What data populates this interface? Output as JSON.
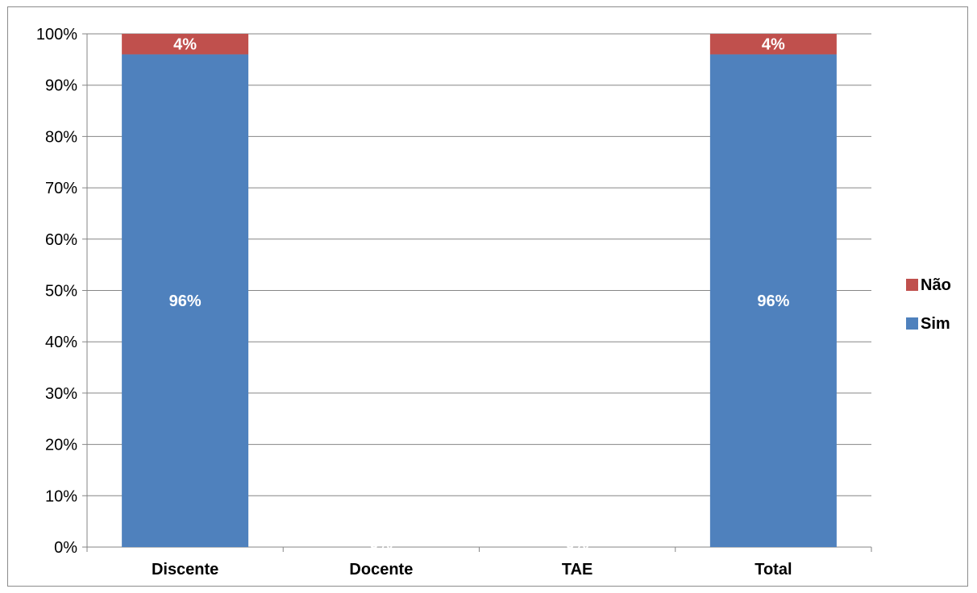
{
  "chart_data": {
    "type": "bar",
    "stacked": true,
    "title": "",
    "xlabel": "",
    "ylabel": "",
    "ylim": [
      0,
      1
    ],
    "y_ticks": [
      "0%",
      "10%",
      "20%",
      "30%",
      "40%",
      "50%",
      "60%",
      "70%",
      "80%",
      "90%",
      "100%"
    ],
    "categories": [
      "Discente",
      "Docente",
      "TAE",
      "Total"
    ],
    "series": [
      {
        "name": "Sim",
        "color": "#4f81bd",
        "values": [
          0.96,
          0,
          0,
          0.96
        ],
        "labels": [
          "96%",
          "0%",
          "0%",
          "96%"
        ]
      },
      {
        "name": "Não",
        "color": "#c0504d",
        "values": [
          0.04,
          0,
          0,
          0.04
        ],
        "labels": [
          "4%",
          "",
          "",
          "4%"
        ]
      }
    ],
    "grid": true,
    "legend_position": "right",
    "legend_order": [
      "Não",
      "Sim"
    ]
  }
}
